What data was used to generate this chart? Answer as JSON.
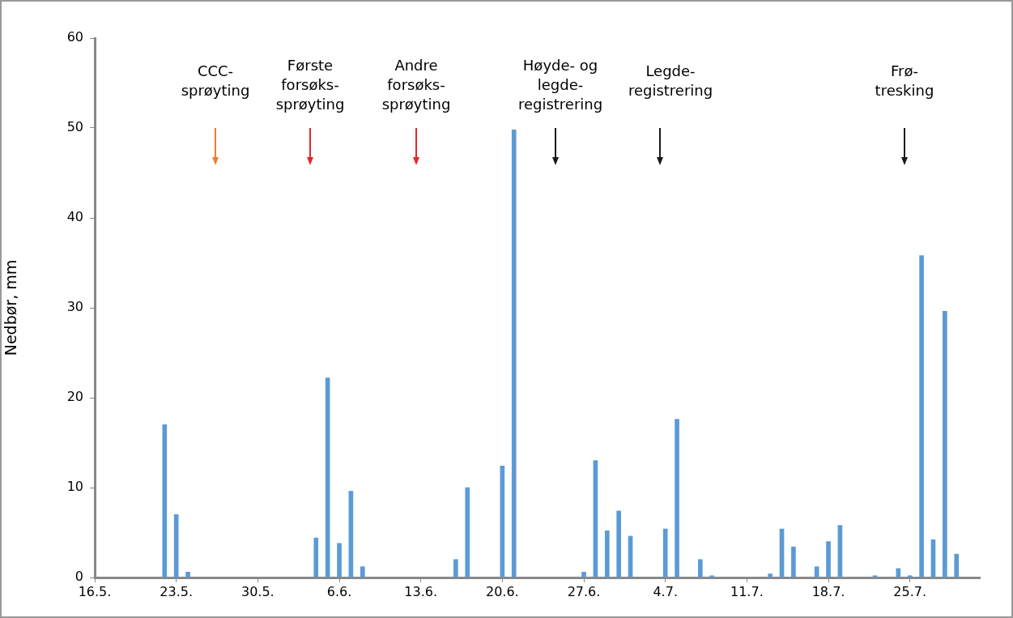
{
  "chart_data": {
    "type": "bar",
    "ylabel": "Nedbør, mm",
    "x": [
      "--05-22",
      "--05-23",
      "--05-24",
      "--06-04",
      "--06-05",
      "--06-06",
      "--06-07",
      "--06-08",
      "--06-16",
      "--06-17",
      "--06-20",
      "--06-21",
      "--06-27",
      "--06-28",
      "--06-29",
      "--06-30",
      "--07-01",
      "--07-04",
      "--07-05",
      "--07-07",
      "--07-08",
      "--07-13",
      "--07-14",
      "--07-15",
      "--07-17",
      "--07-18",
      "--07-19",
      "--07-22",
      "--07-24",
      "--07-25",
      "--07-26",
      "--07-27",
      "--07-28",
      "--07-29"
    ],
    "values": [
      17.0,
      7.0,
      0.6,
      4.4,
      22.2,
      3.8,
      9.6,
      1.2,
      2.0,
      10.0,
      12.4,
      49.8,
      0.6,
      13.0,
      5.2,
      7.4,
      4.6,
      5.4,
      17.6,
      2.0,
      0.2,
      0.4,
      5.4,
      3.4,
      1.2,
      4.0,
      5.8,
      0.2,
      1.0,
      0.2,
      35.8,
      4.2,
      29.6,
      2.6
    ],
    "color": "#5b9bd5",
    "xlim": [
      "--05-16",
      "--07-31"
    ],
    "xticks": [
      {
        "value": "--05-16",
        "label": "16.5."
      },
      {
        "value": "--05-23",
        "label": "23.5."
      },
      {
        "value": "--05-30",
        "label": "30.5."
      },
      {
        "value": "--06-06",
        "label": "6.6."
      },
      {
        "value": "--06-13",
        "label": "13.6."
      },
      {
        "value": "--06-20",
        "label": "20.6."
      },
      {
        "value": "--06-27",
        "label": "27.6."
      },
      {
        "value": "--07-04",
        "label": "4.7."
      },
      {
        "value": "--07-11",
        "label": "11.7."
      },
      {
        "value": "--07-18",
        "label": "18.7."
      },
      {
        "value": "--07-25",
        "label": "25.7."
      }
    ],
    "ylim": [
      0,
      60
    ],
    "yticks": [
      0,
      10,
      20,
      30,
      40,
      50,
      60
    ],
    "grid": false,
    "legend": false,
    "annotations": [
      "CCC-\nsprøyting",
      "Første\nforsøks-\nsprøyting",
      "Andre\nforsøks-\nsprøyting",
      "Høyde- og\nlegde-\nregistrering",
      "Legde-\nregistrering",
      "Frø-\ntresking"
    ]
  }
}
